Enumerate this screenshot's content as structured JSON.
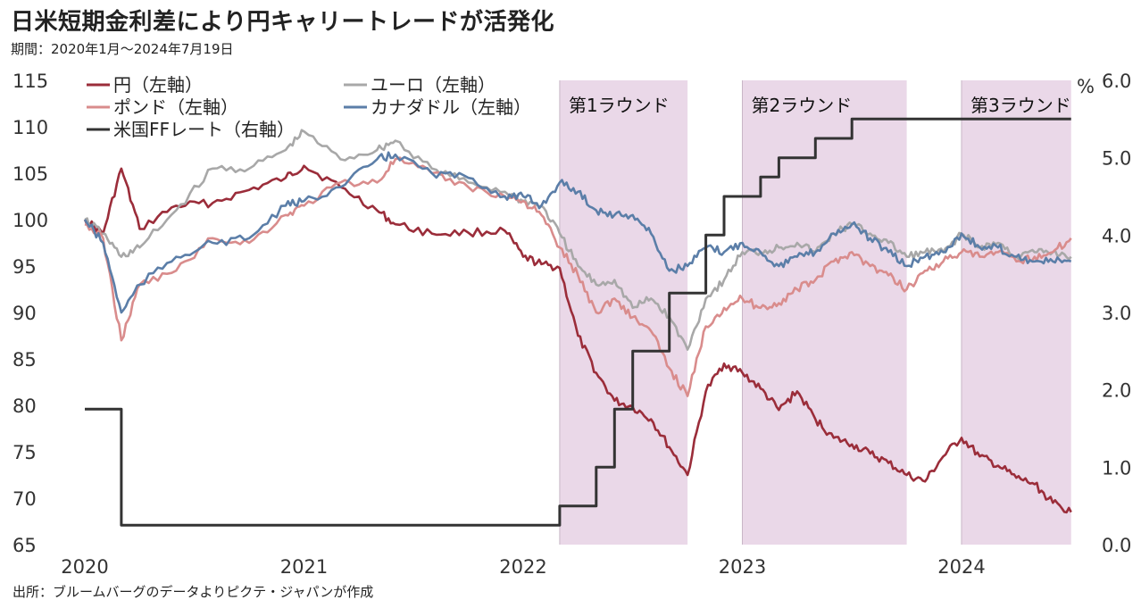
{
  "title": "日米短期金利差により円キャリートレードが活発化",
  "period": "期間：2020年1月～2024年7月19日",
  "source": "出所：ブルームバーグのデータよりピクテ・ジャパンが作成",
  "chart_data": {
    "type": "line",
    "title": "日米短期金利差により円キャリートレードが活発化",
    "x_ticks": [
      "2020",
      "2021",
      "2022",
      "2023",
      "2024"
    ],
    "x_range": [
      "2020-01",
      "2024-07"
    ],
    "y_left": {
      "range": [
        65,
        115
      ],
      "ticks": [
        "65",
        "70",
        "75",
        "80",
        "85",
        "90",
        "95",
        "100",
        "105",
        "110",
        "115"
      ]
    },
    "y_right": {
      "range": [
        0.0,
        6.0
      ],
      "unit": "%",
      "ticks": [
        "0.0",
        "1.0",
        "2.0",
        "3.0",
        "4.0",
        "5.0",
        "6.0"
      ]
    },
    "shaded_periods": [
      {
        "label": "第1ラウンド",
        "start": "2022-03",
        "end": "2022-10"
      },
      {
        "label": "第2ラウンド",
        "start": "2023-01",
        "end": "2023-10"
      },
      {
        "label": "第3ラウンド",
        "start": "2024-01",
        "end": "2024-07"
      }
    ],
    "series": [
      {
        "name": "円（左軸）",
        "axis": "left",
        "color": "#9b2d3a",
        "x": [
          "2020-01",
          "2020-02",
          "2020-03",
          "2020-04",
          "2020-06",
          "2020-08",
          "2020-10",
          "2020-12",
          "2021-01",
          "2021-03",
          "2021-05",
          "2021-06",
          "2021-08",
          "2021-10",
          "2021-12",
          "2022-01",
          "2022-02",
          "2022-03",
          "2022-04",
          "2022-05",
          "2022-06",
          "2022-07",
          "2022-08",
          "2022-09",
          "2022-10",
          "2022-11",
          "2022-12",
          "2023-01",
          "2023-02",
          "2023-03",
          "2023-04",
          "2023-05",
          "2023-06",
          "2023-07",
          "2023-08",
          "2023-09",
          "2023-10",
          "2023-11",
          "2023-12",
          "2024-01",
          "2024-02",
          "2024-03",
          "2024-04",
          "2024-05",
          "2024-06",
          "2024-07"
        ],
        "values": [
          100,
          98.5,
          105.5,
          99,
          101.5,
          101.8,
          103.2,
          104.5,
          105.8,
          103.5,
          101,
          99.5,
          98.5,
          98.6,
          98.8,
          96,
          95.2,
          94.8,
          87.5,
          83.5,
          80.5,
          79.8,
          78.5,
          75.5,
          72.5,
          81.5,
          84.5,
          83.5,
          81.8,
          79.5,
          81.5,
          78.5,
          76.5,
          75.8,
          74.8,
          73.8,
          72.5,
          71.8,
          74.5,
          76.5,
          74.5,
          73.5,
          72.2,
          71.5,
          69.5,
          68.5
        ]
      },
      {
        "name": "ユーロ（左軸）",
        "axis": "left",
        "color": "#a8a8a8",
        "x": [
          "2020-01",
          "2020-02",
          "2020-03",
          "2020-04",
          "2020-06",
          "2020-08",
          "2020-10",
          "2020-12",
          "2021-01",
          "2021-03",
          "2021-05",
          "2021-06",
          "2021-08",
          "2021-10",
          "2021-12",
          "2022-01",
          "2022-02",
          "2022-03",
          "2022-04",
          "2022-05",
          "2022-06",
          "2022-07",
          "2022-08",
          "2022-09",
          "2022-10",
          "2022-11",
          "2022-12",
          "2023-01",
          "2023-02",
          "2023-03",
          "2023-04",
          "2023-05",
          "2023-06",
          "2023-07",
          "2023-08",
          "2023-09",
          "2023-10",
          "2023-11",
          "2023-12",
          "2024-01",
          "2024-02",
          "2024-03",
          "2024-04",
          "2024-05",
          "2024-06",
          "2024-07"
        ],
        "values": [
          100,
          98.5,
          96,
          97,
          101,
          105.5,
          105.5,
          107.5,
          109.5,
          106.5,
          107.5,
          108.5,
          105.5,
          104,
          103,
          102,
          101.5,
          98.5,
          95,
          93,
          93.5,
          90.5,
          91.5,
          89.5,
          86,
          91.5,
          93.5,
          96.5,
          96.5,
          97,
          97.5,
          96.5,
          98.5,
          99.5,
          98.5,
          97.5,
          96,
          96.5,
          96.5,
          98.5,
          97,
          97.5,
          96,
          96.5,
          96.5,
          96
        ]
      },
      {
        "name": "ポンド（左軸）",
        "axis": "left",
        "color": "#d98c8c",
        "x": [
          "2020-01",
          "2020-02",
          "2020-03",
          "2020-04",
          "2020-06",
          "2020-08",
          "2020-10",
          "2020-12",
          "2021-01",
          "2021-03",
          "2021-05",
          "2021-06",
          "2021-08",
          "2021-10",
          "2021-12",
          "2022-01",
          "2022-02",
          "2022-03",
          "2022-04",
          "2022-05",
          "2022-06",
          "2022-07",
          "2022-08",
          "2022-09",
          "2022-10",
          "2022-11",
          "2022-12",
          "2023-01",
          "2023-02",
          "2023-03",
          "2023-04",
          "2023-05",
          "2023-06",
          "2023-07",
          "2023-08",
          "2023-09",
          "2023-10",
          "2023-11",
          "2023-12",
          "2024-01",
          "2024-02",
          "2024-03",
          "2024-04",
          "2024-05",
          "2024-06",
          "2024-07"
        ],
        "values": [
          99.5,
          98,
          87,
          93,
          94.5,
          98,
          97.5,
          100.5,
          101.5,
          104,
          104,
          106.5,
          105,
          103.5,
          102.5,
          102,
          100.5,
          97,
          94,
          90,
          91.5,
          89.5,
          88,
          84,
          81,
          88.5,
          90.5,
          91.5,
          90.5,
          91,
          92.5,
          93.5,
          95.5,
          96.5,
          95,
          94,
          92.5,
          94.5,
          95.5,
          96.5,
          96,
          96.5,
          95.5,
          96,
          96.5,
          98
        ]
      },
      {
        "name": "カナダドル（左軸）",
        "axis": "left",
        "color": "#5b7ea8",
        "x": [
          "2020-01",
          "2020-02",
          "2020-03",
          "2020-04",
          "2020-06",
          "2020-08",
          "2020-10",
          "2020-12",
          "2021-01",
          "2021-03",
          "2021-05",
          "2021-06",
          "2021-08",
          "2021-10",
          "2021-12",
          "2022-01",
          "2022-02",
          "2022-03",
          "2022-04",
          "2022-05",
          "2022-06",
          "2022-07",
          "2022-08",
          "2022-09",
          "2022-10",
          "2022-11",
          "2022-12",
          "2023-01",
          "2023-02",
          "2023-03",
          "2023-04",
          "2023-05",
          "2023-06",
          "2023-07",
          "2023-08",
          "2023-09",
          "2023-10",
          "2023-11",
          "2023-12",
          "2024-01",
          "2024-02",
          "2024-03",
          "2024-04",
          "2024-05",
          "2024-06",
          "2024-07"
        ],
        "values": [
          100,
          97.5,
          90,
          93,
          96,
          97.5,
          98,
          101.5,
          102,
          103.5,
          106.5,
          107,
          105,
          104.5,
          102.5,
          102.5,
          101.5,
          104,
          103,
          101,
          100.5,
          100.5,
          98.5,
          94.5,
          95,
          97,
          96.5,
          97.5,
          96.5,
          95,
          96,
          96.5,
          98.5,
          99.5,
          98,
          96.5,
          95,
          96,
          96.5,
          98.5,
          97,
          97,
          96,
          95.5,
          95.5,
          95.5
        ]
      },
      {
        "name": "米国FFレート（右軸）",
        "axis": "right",
        "color": "#333333",
        "x": [
          "2020-01",
          "2020-03",
          "2020-03",
          "2020-03",
          "2020-03",
          "2022-03",
          "2022-03",
          "2022-05",
          "2022-05",
          "2022-06",
          "2022-06",
          "2022-07",
          "2022-07",
          "2022-09",
          "2022-09",
          "2022-11",
          "2022-11",
          "2022-12",
          "2022-12",
          "2023-02",
          "2023-02",
          "2023-03",
          "2023-03",
          "2023-05",
          "2023-05",
          "2023-07",
          "2023-07",
          "2024-07"
        ],
        "values": [
          1.75,
          1.75,
          1.25,
          1.25,
          0.25,
          0.25,
          0.5,
          0.5,
          1.0,
          1.0,
          1.75,
          1.75,
          2.5,
          2.5,
          3.25,
          3.25,
          4.0,
          4.0,
          4.5,
          4.5,
          4.75,
          4.75,
          5.0,
          5.0,
          5.25,
          5.25,
          5.5,
          5.5
        ]
      }
    ],
    "legend": [
      {
        "label": "円（左軸）",
        "color": "#9b2d3a"
      },
      {
        "label": "ユーロ（左軸）",
        "color": "#a8a8a8"
      },
      {
        "label": "ポンド（左軸）",
        "color": "#d98c8c"
      },
      {
        "label": "カナダドル（左軸）",
        "color": "#5b7ea8"
      },
      {
        "label": "米国FFレート（右軸）",
        "color": "#333333"
      }
    ],
    "legend_position": "top-left",
    "grid": false,
    "shade_color": "#ead8e8"
  }
}
